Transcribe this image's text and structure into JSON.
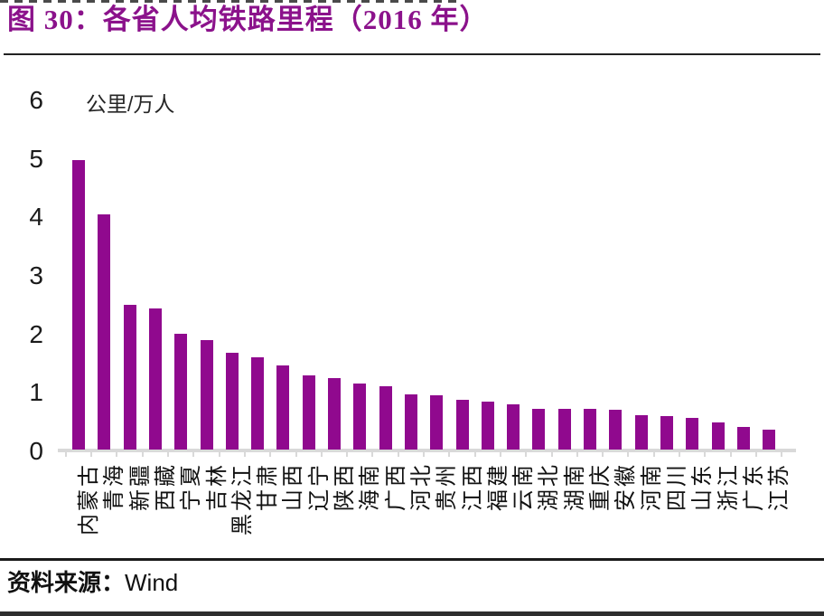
{
  "header": {
    "title": "图 30：各省人均铁路里程（2016 年）",
    "title_color": "#8B128B"
  },
  "chart_data": {
    "type": "bar",
    "title": "各省人均铁路里程（2016 年）",
    "unit_label": "公里/万人",
    "xlabel": "",
    "ylabel": "公里/万人",
    "categories": [
      "内蒙古",
      "青海",
      "新疆",
      "西藏",
      "宁夏",
      "吉林",
      "黑龙江",
      "甘肃",
      "山西",
      "辽宁",
      "陕西",
      "海南",
      "广西",
      "河北",
      "贵州",
      "江西",
      "福建",
      "云南",
      "湖北",
      "湖南",
      "重庆",
      "安徽",
      "河南",
      "四川",
      "山东",
      "浙江",
      "广东",
      "江苏"
    ],
    "values": [
      4.95,
      4.02,
      2.48,
      2.41,
      1.98,
      1.87,
      1.65,
      1.57,
      1.44,
      1.27,
      1.22,
      1.13,
      1.08,
      0.94,
      0.92,
      0.85,
      0.82,
      0.78,
      0.7,
      0.69,
      0.69,
      0.68,
      0.58,
      0.57,
      0.54,
      0.46,
      0.38,
      0.34
    ],
    "ylim": [
      0,
      6
    ],
    "yticks": [
      0,
      1,
      2,
      3,
      4,
      5,
      6
    ],
    "bar_color": "#90098E",
    "axis_color": "#d9d9d9",
    "grid": false,
    "legend": false
  },
  "footer": {
    "source_label": "资料来源：",
    "source_value": "Wind"
  }
}
